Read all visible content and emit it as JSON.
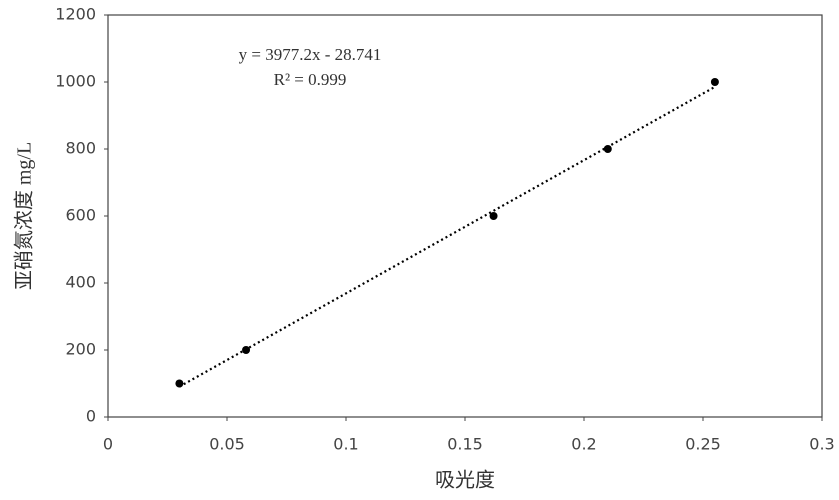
{
  "chart_data": {
    "type": "scatter",
    "x_label": "吸光度",
    "y_label": "亚硝氮浓度 mg/L",
    "annotations": [
      "y = 3977.2x - 28.741",
      "R² = 0.999"
    ],
    "series": [
      {
        "color": "#000000",
        "x": [
          0.03,
          0.058,
          0.162,
          0.21,
          0.255
        ],
        "values": [
          100,
          200,
          600,
          800,
          1000
        ]
      }
    ],
    "trendline": true,
    "xlim": [
      0,
      0.3
    ],
    "xticks": [
      0,
      0.05,
      0.1,
      0.15,
      0.2,
      0.25,
      0.3
    ],
    "ylim": [
      0,
      1200
    ],
    "yticks": [
      0,
      200,
      400,
      600,
      800,
      1000,
      1200
    ],
    "grid": false
  }
}
